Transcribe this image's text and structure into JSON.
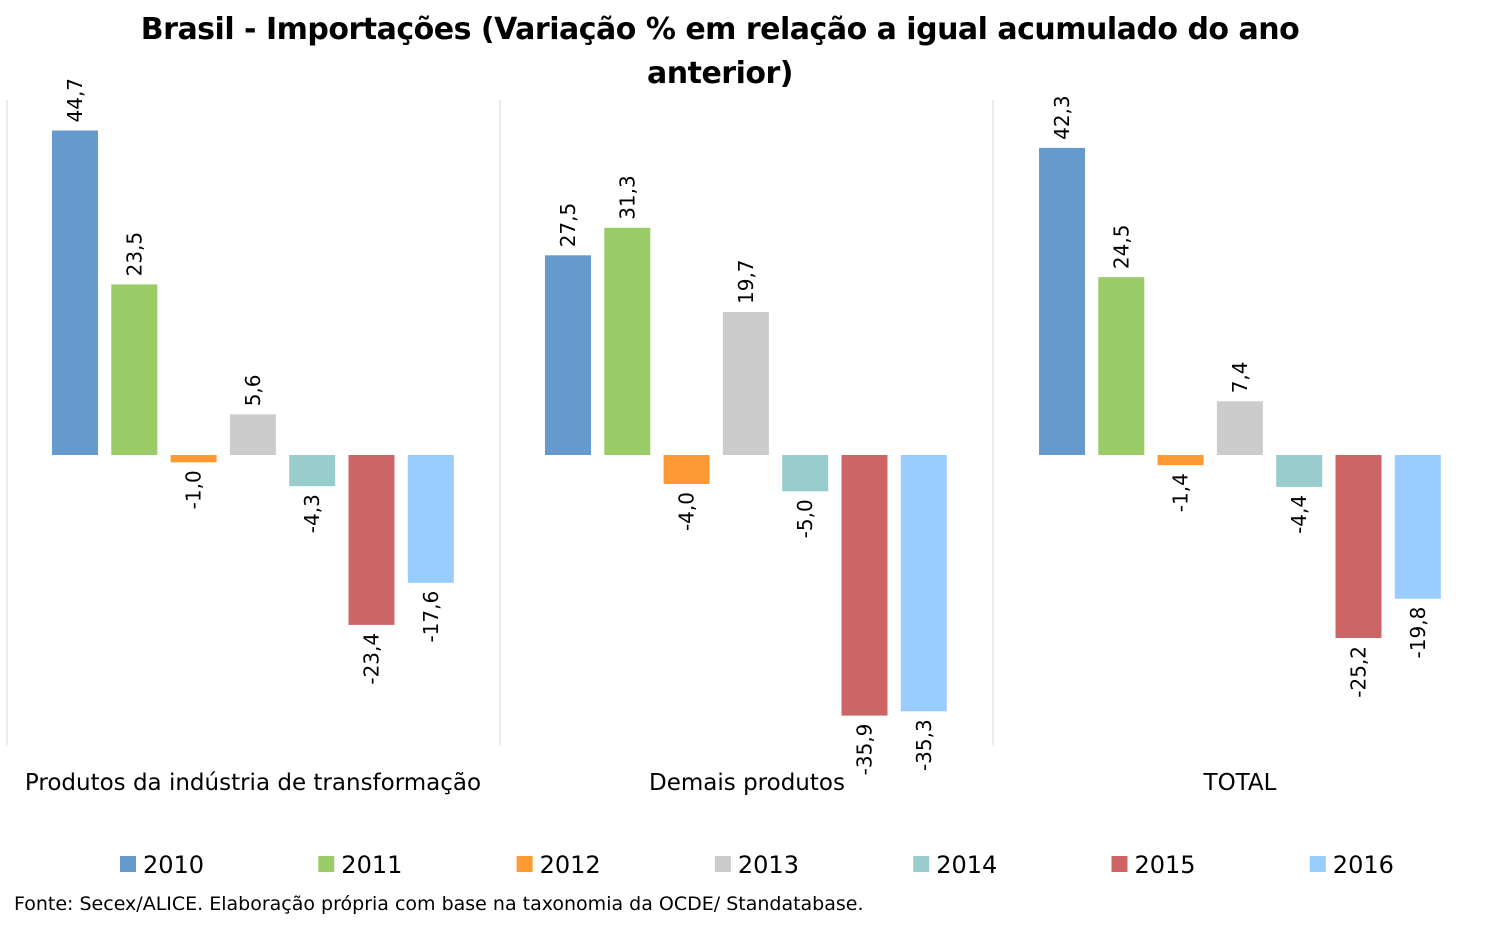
{
  "chart_data": {
    "type": "bar",
    "title_line1": "Brasil - Importações (Variação % em relação a igual acumulado do ano",
    "title_line2": "anterior)",
    "categories": [
      "Produtos da indústria de transformação",
      "Demais produtos",
      "TOTAL"
    ],
    "series": [
      {
        "name": "2010",
        "color": "#6699CC",
        "values": [
          44.7,
          27.5,
          42.3
        ],
        "labels": [
          "44,7",
          "27,5",
          "42,3"
        ]
      },
      {
        "name": "2011",
        "color": "#99CC66",
        "values": [
          23.5,
          31.3,
          24.5
        ],
        "labels": [
          "23,5",
          "31,3",
          "24,5"
        ]
      },
      {
        "name": "2012",
        "color": "#FF9933",
        "values": [
          -1.0,
          -4.0,
          -1.4
        ],
        "labels": [
          "-1,0",
          "-4,0",
          "-1,4"
        ]
      },
      {
        "name": "2013",
        "color": "#CCCCCC",
        "values": [
          5.6,
          19.7,
          7.4
        ],
        "labels": [
          "5,6",
          "19,7",
          "7,4"
        ]
      },
      {
        "name": "2014",
        "color": "#99CCCC",
        "values": [
          -4.3,
          -5.0,
          -4.4
        ],
        "labels": [
          "-4,3",
          "-5,0",
          "-4,4"
        ]
      },
      {
        "name": "2015",
        "color": "#CC6666",
        "values": [
          -23.4,
          -35.9,
          -25.2
        ],
        "labels": [
          "-23,4",
          "-35,9",
          "-25,2"
        ]
      },
      {
        "name": "2016",
        "color": "#99CCFF",
        "values": [
          -17.6,
          -35.3,
          -19.8
        ],
        "labels": [
          "-17,6",
          "-35,3",
          "-19,8"
        ]
      }
    ],
    "ylim": [
      -40,
      49
    ],
    "grid": false,
    "legend_position": "bottom",
    "source": "Fonte: Secex/ALICE. Elaboração própria com base na taxonomia da OCDE/ Standatabase."
  }
}
